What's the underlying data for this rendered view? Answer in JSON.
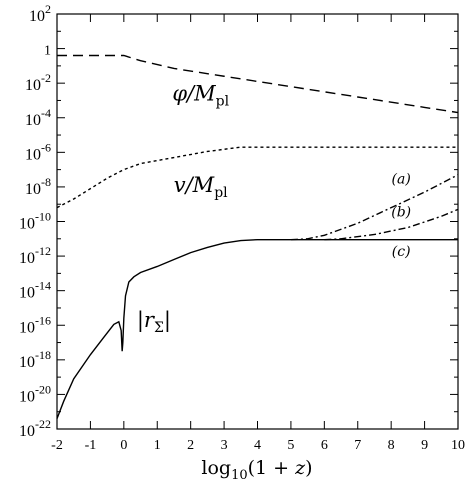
{
  "chart_data": {
    "type": "line",
    "xlabel": "log10(1 + z)",
    "yscale": "log",
    "xlim": [
      -2,
      10
    ],
    "ylim_exponent": [
      -22,
      2
    ],
    "xticks": [
      -2,
      -1,
      0,
      1,
      2,
      3,
      4,
      5,
      6,
      7,
      8,
      9,
      10
    ],
    "yticks": [
      {
        "base": "10",
        "exp": "2"
      },
      {
        "base": "1",
        "exp": ""
      },
      {
        "base": "10",
        "exp": "-2"
      },
      {
        "base": "10",
        "exp": "-4"
      },
      {
        "base": "10",
        "exp": "-6"
      },
      {
        "base": "10",
        "exp": "-8"
      },
      {
        "base": "10",
        "exp": "-10"
      },
      {
        "base": "10",
        "exp": "-12"
      },
      {
        "base": "10",
        "exp": "-14"
      },
      {
        "base": "10",
        "exp": "-16"
      },
      {
        "base": "10",
        "exp": "-18"
      },
      {
        "base": "10",
        "exp": "-20"
      },
      {
        "base": "10",
        "exp": "-22"
      }
    ],
    "series": [
      {
        "key": "phi",
        "style": "dashed",
        "points": [
          [
            -2,
            -0.4
          ],
          [
            0,
            -0.4
          ],
          [
            0.5,
            -0.7
          ],
          [
            1.5,
            -1.15
          ],
          [
            3,
            -1.6
          ],
          [
            5,
            -2.2
          ],
          [
            7,
            -2.8
          ],
          [
            9,
            -3.4
          ],
          [
            10,
            -3.7
          ]
        ]
      },
      {
        "key": "v",
        "style": "dotted",
        "points": [
          [
            -2,
            -9.2
          ],
          [
            -1.5,
            -8.7
          ],
          [
            -1,
            -8.1
          ],
          [
            -0.5,
            -7.5
          ],
          [
            0,
            -7.0
          ],
          [
            0.5,
            -6.65
          ],
          [
            1.5,
            -6.3
          ],
          [
            2.5,
            -5.95
          ],
          [
            3.5,
            -5.7
          ],
          [
            4,
            -5.7
          ],
          [
            10,
            -5.7
          ]
        ]
      },
      {
        "key": "r_sigma",
        "style": "solid",
        "points": [
          [
            -2,
            -21.4
          ],
          [
            -1.8,
            -20.4
          ],
          [
            -1.5,
            -19.1
          ],
          [
            -1.0,
            -17.7
          ],
          [
            -0.6,
            -16.7
          ],
          [
            -0.3,
            -15.95
          ],
          [
            -0.15,
            -15.8
          ],
          [
            -0.08,
            -16.3
          ],
          [
            -0.05,
            -17.5
          ],
          [
            -0.03,
            -17.0
          ],
          [
            0.0,
            -15.6
          ],
          [
            0.05,
            -14.3
          ],
          [
            0.15,
            -13.5
          ],
          [
            0.3,
            -13.2
          ],
          [
            0.5,
            -12.95
          ],
          [
            1.0,
            -12.6
          ],
          [
            1.5,
            -12.2
          ],
          [
            2.0,
            -11.8
          ],
          [
            2.5,
            -11.5
          ],
          [
            3.0,
            -11.25
          ],
          [
            3.5,
            -11.1
          ],
          [
            4.0,
            -11.05
          ],
          [
            5,
            -11.05
          ],
          [
            10,
            -11.05
          ]
        ]
      },
      {
        "key": "a",
        "style": "dash-dot",
        "points": [
          [
            5.0,
            -11.05
          ],
          [
            5.5,
            -11.0
          ],
          [
            6.0,
            -10.8
          ],
          [
            7.0,
            -10.1
          ],
          [
            8.0,
            -9.2
          ],
          [
            9.0,
            -8.3
          ],
          [
            10.0,
            -7.3
          ]
        ]
      },
      {
        "key": "b",
        "style": "dash-dot",
        "points": [
          [
            6.0,
            -11.05
          ],
          [
            6.5,
            -11.0
          ],
          [
            7.5,
            -10.75
          ],
          [
            8.5,
            -10.35
          ],
          [
            9.5,
            -9.7
          ],
          [
            10.0,
            -9.3
          ]
        ]
      }
    ],
    "annotations": [
      {
        "key": "phi",
        "main": "φ/M",
        "sub": "pl",
        "x": 2.3,
        "y": -3.0
      },
      {
        "key": "v",
        "main": "v/M",
        "sub": "pl",
        "x": 2.3,
        "y": -8.3
      },
      {
        "key": "rsig",
        "main": "|r",
        "sub": "Σ",
        "tail": "|",
        "x": 0.9,
        "y": -16.1
      },
      {
        "key": "a",
        "text": "(a)",
        "x": 8.3,
        "y": -7.8
      },
      {
        "key": "b",
        "text": "(b)",
        "x": 8.3,
        "y": -9.7
      },
      {
        "key": "c",
        "text": "(c)",
        "x": 8.3,
        "y": -12.0
      }
    ]
  }
}
